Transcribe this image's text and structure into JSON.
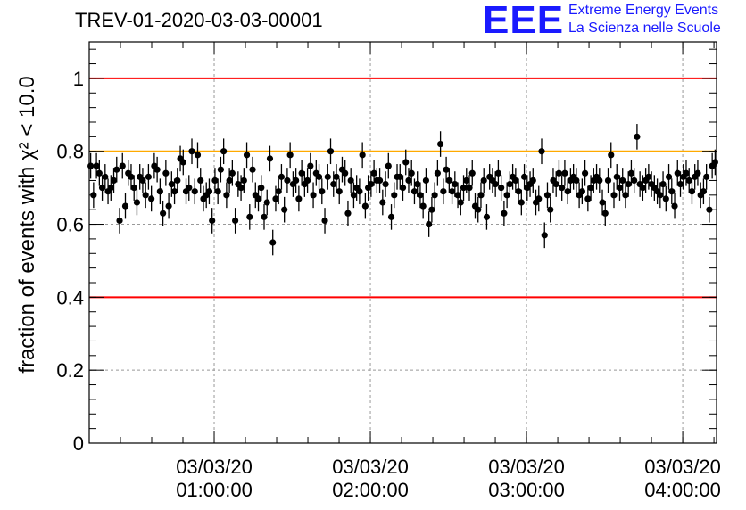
{
  "header": {
    "title": "TREV-01-2020-03-03-00001",
    "logo_text": "EEE",
    "logo_line1": "Extreme Energy Events",
    "logo_line2": "La Scienza nelle Scuole"
  },
  "colors": {
    "reference_lines": "#ff0000",
    "target_line": "#ffaa00",
    "markers": "#000000",
    "logo": "#1a1aff",
    "grid": "#999999"
  },
  "chart_data": {
    "type": "scatter",
    "ylabel": "fraction of events with χ² < 10.0",
    "ylim": [
      0,
      1.1
    ],
    "yticks": [
      0,
      0.2,
      0.4,
      0.6,
      0.8,
      1
    ],
    "ytick_labels": [
      "0",
      "0.2",
      "0.4",
      "0.6",
      "0.8",
      "1"
    ],
    "xlim": [
      "00:12",
      "04:13"
    ],
    "xticks": [
      "01:00",
      "02:00",
      "03:00",
      "04:00"
    ],
    "xtick_labels": [
      [
        "03/03/20",
        "01:00:00"
      ],
      [
        "03/03/20",
        "02:00:00"
      ],
      [
        "03/03/20",
        "03:00:00"
      ],
      [
        "03/03/20",
        "04:00:00"
      ]
    ],
    "grid": true,
    "reference_lines": [
      {
        "y": 1.0,
        "color": "red"
      },
      {
        "y": 0.4,
        "color": "red"
      },
      {
        "y": 0.8,
        "color": "orange"
      }
    ],
    "error_bar": 0.035,
    "start_time": "00:12:00",
    "end_time": "04:13:00",
    "y": [
      0.76,
      0.68,
      0.76,
      0.74,
      0.7,
      0.73,
      0.69,
      0.7,
      0.72,
      0.75,
      0.61,
      0.76,
      0.65,
      0.74,
      0.73,
      0.7,
      0.66,
      0.73,
      0.72,
      0.68,
      0.73,
      0.67,
      0.76,
      0.75,
      0.69,
      0.63,
      0.74,
      0.65,
      0.71,
      0.69,
      0.72,
      0.78,
      0.77,
      0.69,
      0.7,
      0.8,
      0.69,
      0.79,
      0.72,
      0.67,
      0.68,
      0.69,
      0.61,
      0.72,
      0.69,
      0.75,
      0.8,
      0.68,
      0.72,
      0.74,
      0.61,
      0.71,
      0.7,
      0.72,
      0.79,
      0.62,
      0.75,
      0.68,
      0.67,
      0.7,
      0.62,
      0.66,
      0.78,
      0.55,
      0.67,
      0.69,
      0.73,
      0.64,
      0.72,
      0.79,
      0.71,
      0.72,
      0.67,
      0.74,
      0.71,
      0.72,
      0.76,
      0.68,
      0.74,
      0.73,
      0.69,
      0.61,
      0.73,
      0.8,
      0.71,
      0.73,
      0.69,
      0.75,
      0.74,
      0.63,
      0.72,
      0.68,
      0.7,
      0.69,
      0.79,
      0.65,
      0.7,
      0.71,
      0.74,
      0.72,
      0.72,
      0.66,
      0.71,
      0.76,
      0.62,
      0.68,
      0.73,
      0.73,
      0.7,
      0.77,
      0.72,
      0.74,
      0.69,
      0.71,
      0.68,
      0.65,
      0.72,
      0.6,
      0.64,
      0.68,
      0.74,
      0.82,
      0.69,
      0.75,
      0.72,
      0.69,
      0.71,
      0.68,
      0.66,
      0.7,
      0.72,
      0.7,
      0.74,
      0.65,
      0.64,
      0.68,
      0.72,
      0.62,
      0.73,
      0.72,
      0.71,
      0.74,
      0.7,
      0.63,
      0.68,
      0.71,
      0.73,
      0.72,
      0.69,
      0.66,
      0.73,
      0.7,
      0.71,
      0.72,
      0.66,
      0.67,
      0.8,
      0.57,
      0.68,
      0.64,
      0.72,
      0.71,
      0.74,
      0.7,
      0.74,
      0.69,
      0.72,
      0.73,
      0.72,
      0.68,
      0.69,
      0.74,
      0.67,
      0.7,
      0.72,
      0.73,
      0.72,
      0.66,
      0.63,
      0.72,
      0.79,
      0.68,
      0.73,
      0.7,
      0.72,
      0.68,
      0.71,
      0.74,
      0.72,
      0.84,
      0.71,
      0.7,
      0.72,
      0.73,
      0.71,
      0.7,
      0.69,
      0.68,
      0.71,
      0.67,
      0.73,
      0.69,
      0.65,
      0.74,
      0.71,
      0.73,
      0.74,
      0.72,
      0.69,
      0.73,
      0.74,
      0.68,
      0.69,
      0.73,
      0.64,
      0.76,
      0.77
    ]
  }
}
